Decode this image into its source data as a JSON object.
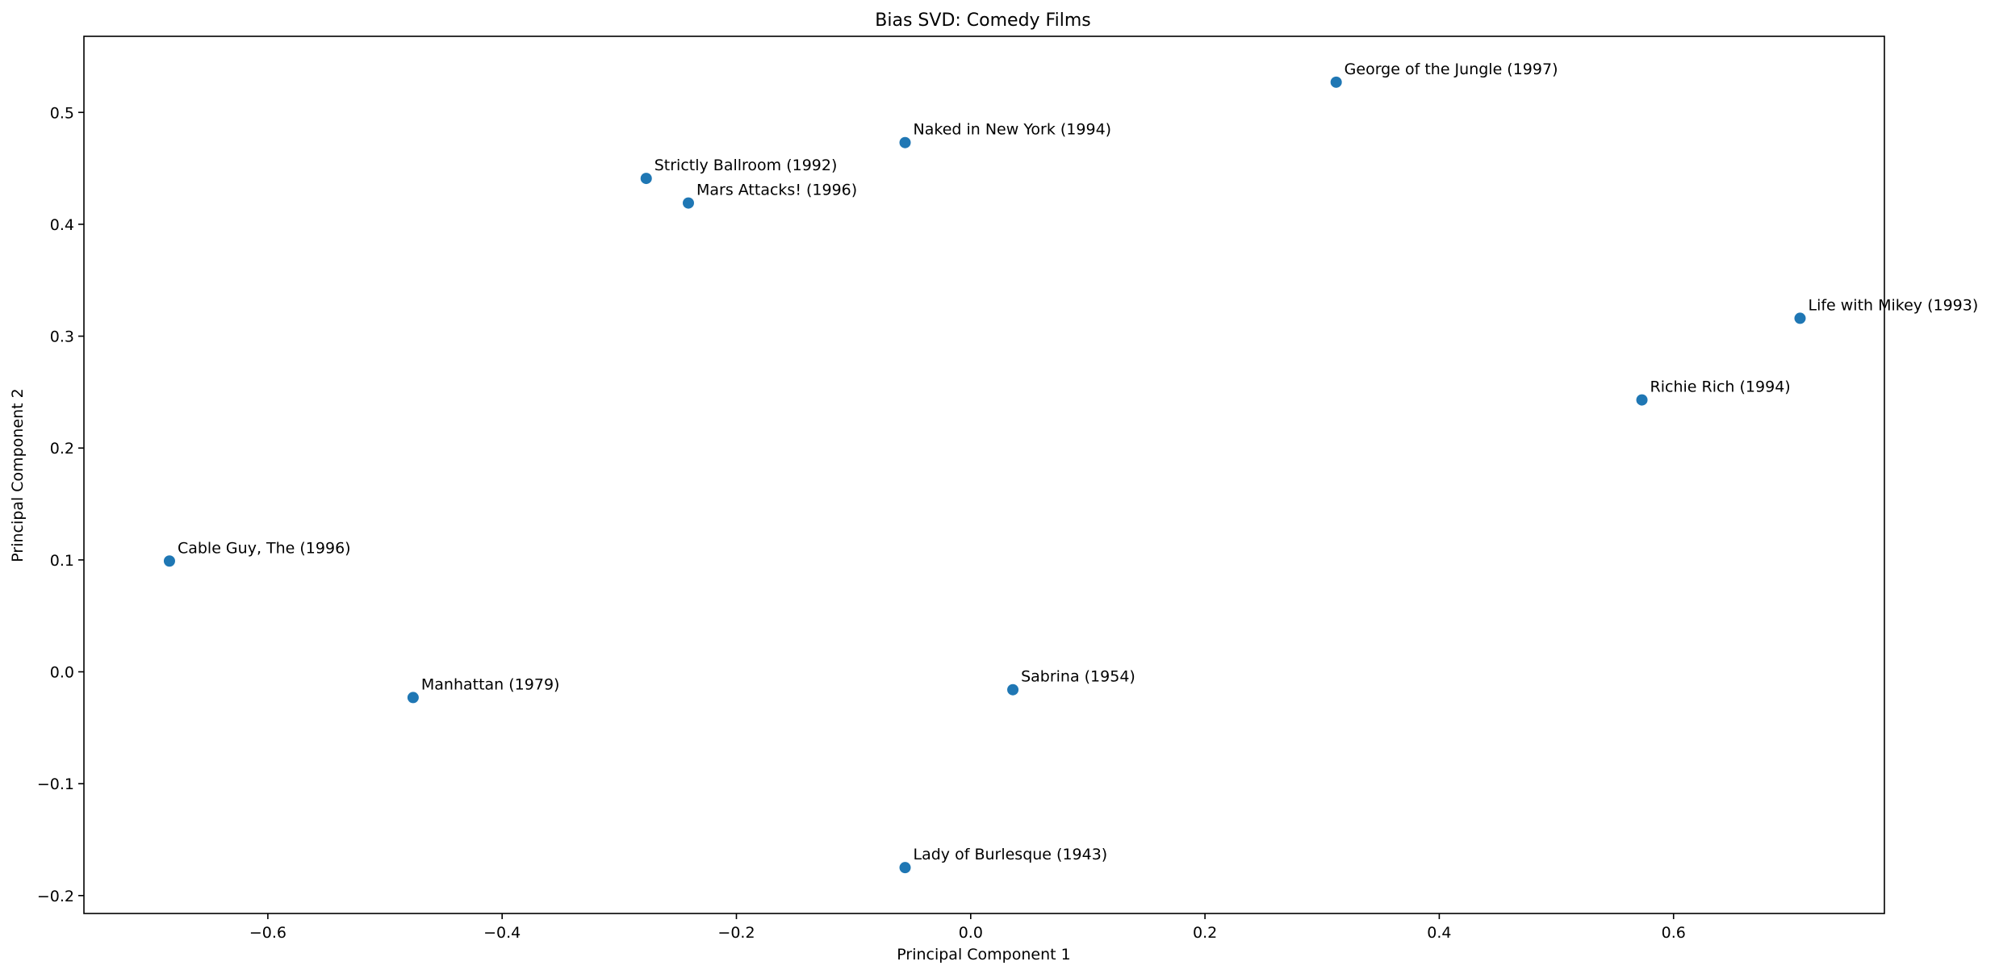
{
  "chart_data": {
    "type": "scatter",
    "title": "Bias SVD: Comedy Films",
    "xlabel": "Principal Component 1",
    "ylabel": "Principal Component 2",
    "xlim": [
      -0.757,
      0.78
    ],
    "ylim": [
      -0.216,
      0.568
    ],
    "xticks": [
      -0.6,
      -0.4,
      -0.2,
      0.0,
      0.2,
      0.4,
      0.6
    ],
    "xtick_labels": [
      "−0.6",
      "−0.4",
      "−0.2",
      "0.0",
      "0.2",
      "0.4",
      "0.6"
    ],
    "yticks": [
      -0.2,
      -0.1,
      0.0,
      0.1,
      0.2,
      0.3,
      0.4,
      0.5
    ],
    "ytick_labels": [
      "−0.2",
      "−0.1",
      "0.0",
      "0.1",
      "0.2",
      "0.3",
      "0.4",
      "0.5"
    ],
    "grid": false,
    "marker_color": "#1f77b4",
    "points": [
      {
        "label": "George of the Jungle (1997)",
        "x": 0.312,
        "y": 0.527
      },
      {
        "label": "Naked in New York (1994)",
        "x": -0.056,
        "y": 0.473
      },
      {
        "label": "Strictly Ballroom (1992)",
        "x": -0.277,
        "y": 0.441
      },
      {
        "label": "Mars Attacks! (1996)",
        "x": -0.241,
        "y": 0.419
      },
      {
        "label": "Life with Mikey (1993)",
        "x": 0.708,
        "y": 0.316
      },
      {
        "label": "Richie Rich (1994)",
        "x": 0.573,
        "y": 0.243
      },
      {
        "label": "Cable Guy, The (1996)",
        "x": -0.684,
        "y": 0.099
      },
      {
        "label": "Manhattan (1979)",
        "x": -0.476,
        "y": -0.023
      },
      {
        "label": "Sabrina (1954)",
        "x": 0.036,
        "y": -0.016
      },
      {
        "label": "Lady of Burlesque (1943)",
        "x": -0.056,
        "y": -0.175
      }
    ]
  }
}
